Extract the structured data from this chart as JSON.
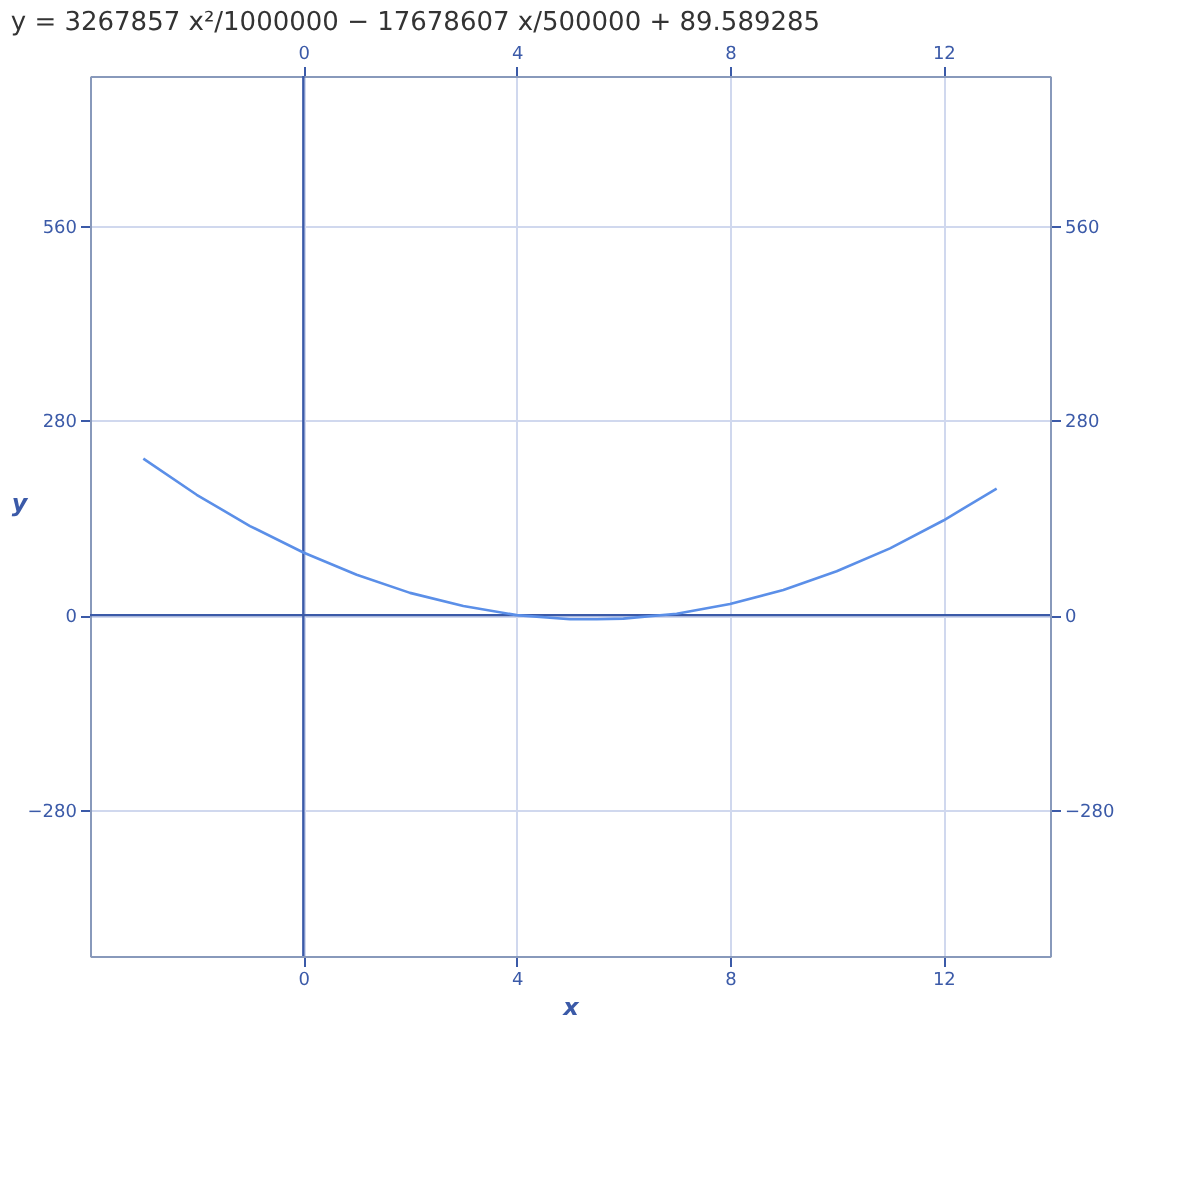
{
  "chart_data": {
    "type": "line",
    "title": "y = 3267857 x²/1000000 − 17678607 x/500000 + 89.589285",
    "xlabel": "x",
    "ylabel": "y",
    "x": [
      -3,
      -2,
      -1,
      0,
      1,
      2,
      3,
      4,
      5,
      5.5,
      6,
      7,
      8,
      9,
      10,
      11,
      12,
      13
    ],
    "series": [
      {
        "color": "#5b8fe8",
        "values": [
          225,
          173,
          128,
          90,
          58,
          32,
          13,
          0,
          -6,
          -6,
          -5,
          2,
          16,
          36,
          63,
          96,
          136,
          182
        ]
      }
    ],
    "xlim": [
      -4,
      14
    ],
    "xticks": [
      0,
      4,
      8,
      12
    ],
    "x2lim": [
      -4,
      14
    ],
    "x2ticks": [
      0,
      4,
      8,
      12
    ],
    "ylim": [
      -490,
      775
    ],
    "yticks": [
      {
        "value": -280,
        "label": "−280"
      },
      0,
      280,
      560
    ],
    "y2lim": [
      -490,
      775
    ],
    "y2ticks": [
      {
        "value": -280,
        "label": "−280"
      },
      0,
      280,
      560
    ],
    "grid": true,
    "marker": "none",
    "line_style": "solid"
  }
}
